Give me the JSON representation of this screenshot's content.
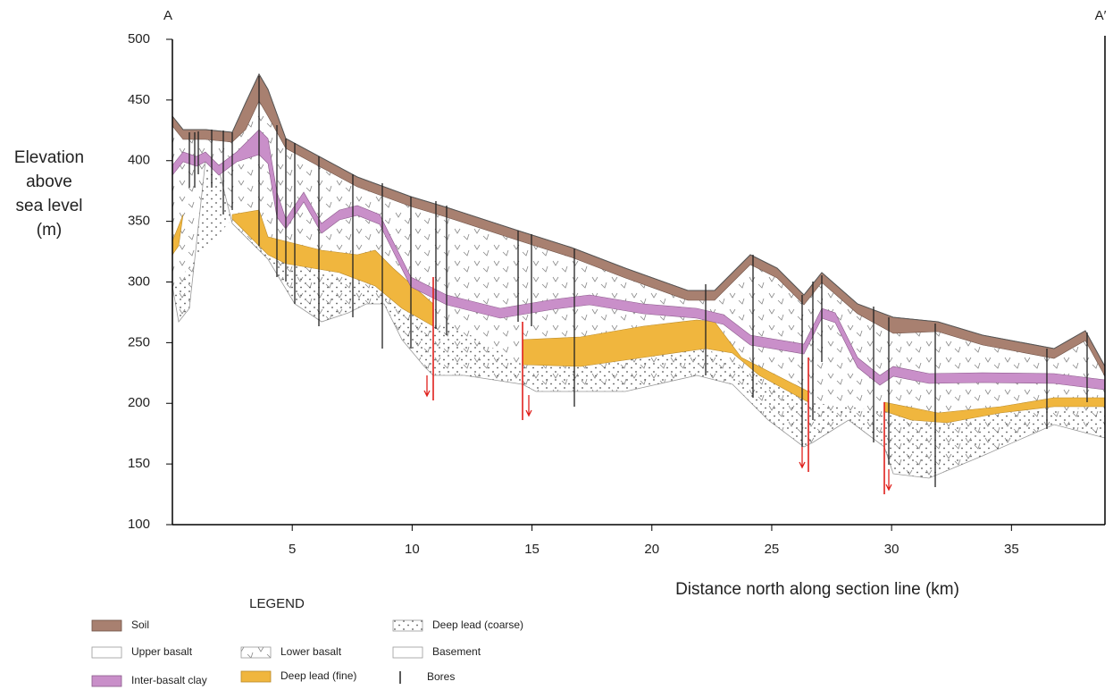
{
  "section": {
    "start_label": "A",
    "end_label": "A′"
  },
  "axes": {
    "y_label_lines": [
      "Elevation",
      "above",
      "sea level",
      "(m)"
    ],
    "x_label": "Distance north along section line (km)",
    "ylim": [
      100,
      500
    ],
    "yticks": [
      100,
      150,
      200,
      250,
      300,
      350,
      400,
      450,
      500
    ],
    "xlim": [
      0,
      38.9
    ],
    "xticks": [
      5,
      10,
      15,
      20,
      25,
      30,
      35
    ]
  },
  "legend": {
    "title": "LEGEND",
    "items": [
      "Soil",
      "Upper basalt",
      "Inter-basalt clay",
      "Lower basalt",
      "Deep lead (fine)",
      "Deep lead (coarse)",
      "Basement",
      "Bores"
    ]
  }
}
